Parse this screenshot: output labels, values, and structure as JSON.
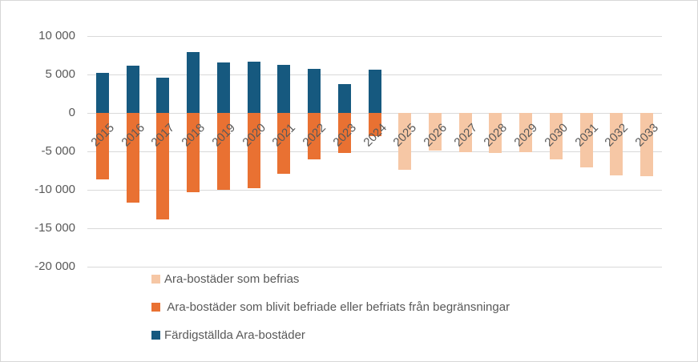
{
  "chart_data": {
    "type": "bar",
    "stacked": true,
    "title": "",
    "xlabel": "",
    "ylabel": "",
    "grid": true,
    "legend_position": "bottom-left",
    "ylim": [
      -20000,
      10000
    ],
    "y_ticks": [
      {
        "v": 10000,
        "label": "10 000"
      },
      {
        "v": 5000,
        "label": "5 000"
      },
      {
        "v": 0,
        "label": "0"
      },
      {
        "v": -5000,
        "label": "-5 000"
      },
      {
        "v": -10000,
        "label": "-10 000"
      },
      {
        "v": -15000,
        "label": "-15 000"
      },
      {
        "v": -20000,
        "label": "-20 000"
      }
    ],
    "categories": [
      "2015",
      "2016",
      "2017",
      "2018",
      "2019",
      "2020",
      "2021",
      "2022",
      "2023",
      "2024",
      "2025",
      "2026",
      "2027",
      "2028",
      "2029",
      "2030",
      "2031",
      "2032",
      "2033"
    ],
    "series": [
      {
        "name": "Ara-bostäder som befrias",
        "color": "#F6C7A5",
        "values": [
          null,
          null,
          null,
          null,
          null,
          null,
          null,
          null,
          null,
          null,
          -7400,
          -4900,
          -5100,
          -5200,
          -5100,
          -6000,
          -7100,
          -8100,
          -8200
        ]
      },
      {
        "name": " Ara-bostäder som blivit befriade eller befriats från begränsningar",
        "color": "#E97132",
        "values": [
          -8600,
          -11700,
          -13900,
          -10300,
          -10000,
          -9800,
          -7900,
          -6000,
          -5200,
          -3000,
          null,
          null,
          null,
          null,
          null,
          null,
          null,
          null,
          null
        ]
      },
      {
        "name": "Färdigställda Ara-bostäder",
        "color": "#16597F",
        "values": [
          5200,
          6200,
          4600,
          7900,
          6600,
          6700,
          6300,
          5700,
          3800,
          5600,
          null,
          null,
          null,
          null,
          null,
          null,
          null,
          null,
          null
        ]
      }
    ]
  },
  "colors": {
    "grid": "#D9D9D9",
    "axis_text": "#595959",
    "frame_border": "#D7D7D7",
    "background": "#FFFFFF"
  }
}
